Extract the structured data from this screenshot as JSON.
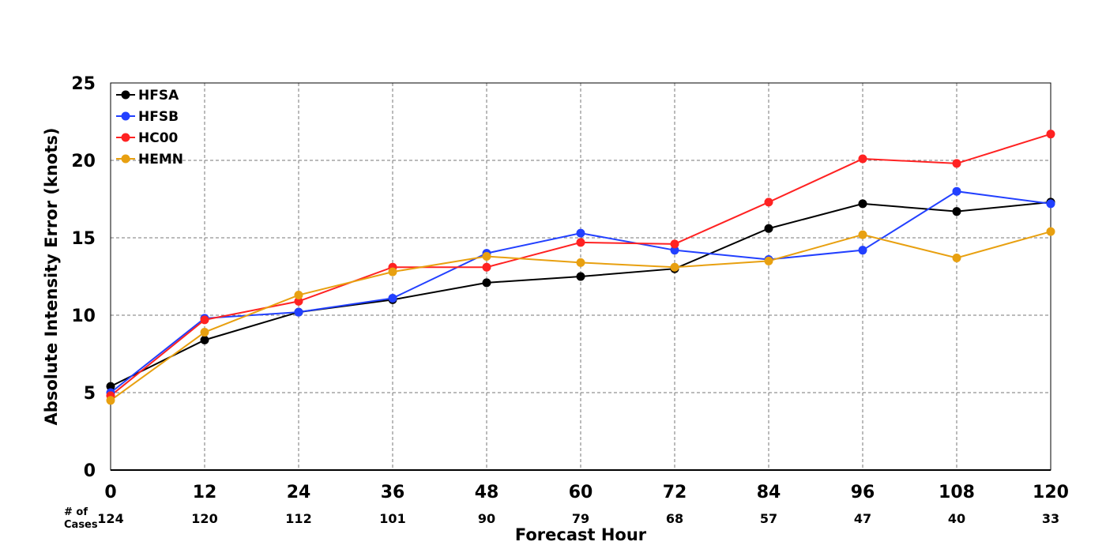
{
  "chart_data": {
    "type": "line",
    "xlabel": "Forecast Hour",
    "ylabel": "Absolute Intensity Error (knots)",
    "x": [
      0,
      12,
      24,
      36,
      48,
      60,
      72,
      84,
      96,
      108,
      120
    ],
    "x_tick_labels": [
      "0",
      "12",
      "24",
      "36",
      "48",
      "60",
      "72",
      "84",
      "96",
      "108",
      "120"
    ],
    "y_ticks": [
      0,
      5,
      10,
      15,
      20,
      25
    ],
    "y_tick_labels": [
      "0",
      "5",
      "10",
      "15",
      "20",
      "25"
    ],
    "xlim": [
      0,
      120
    ],
    "ylim": [
      0,
      25
    ],
    "grid": true,
    "legend_position": "top-left",
    "cases_label_line1": "# of",
    "cases_label_line2": "Cases",
    "cases": [
      "124",
      "120",
      "112",
      "101",
      "90",
      "79",
      "68",
      "57",
      "47",
      "40",
      "33"
    ],
    "series": [
      {
        "name": "HFSA",
        "color": "#000000",
        "values": [
          5.4,
          8.4,
          10.2,
          11.0,
          12.1,
          12.5,
          13.0,
          15.6,
          17.2,
          16.7,
          17.3
        ]
      },
      {
        "name": "HFSB",
        "color": "#2240ff",
        "values": [
          5.0,
          9.8,
          10.2,
          11.1,
          14.0,
          15.3,
          14.2,
          13.6,
          14.2,
          18.0,
          17.2
        ]
      },
      {
        "name": "HC00",
        "color": "#ff2222",
        "values": [
          4.8,
          9.7,
          10.9,
          13.1,
          13.1,
          14.7,
          14.6,
          17.3,
          20.1,
          19.8,
          21.7
        ]
      },
      {
        "name": "HEMN",
        "color": "#e8a010",
        "values": [
          4.5,
          8.9,
          11.3,
          12.8,
          13.8,
          13.4,
          13.1,
          13.5,
          15.2,
          13.7,
          15.4
        ]
      }
    ]
  }
}
